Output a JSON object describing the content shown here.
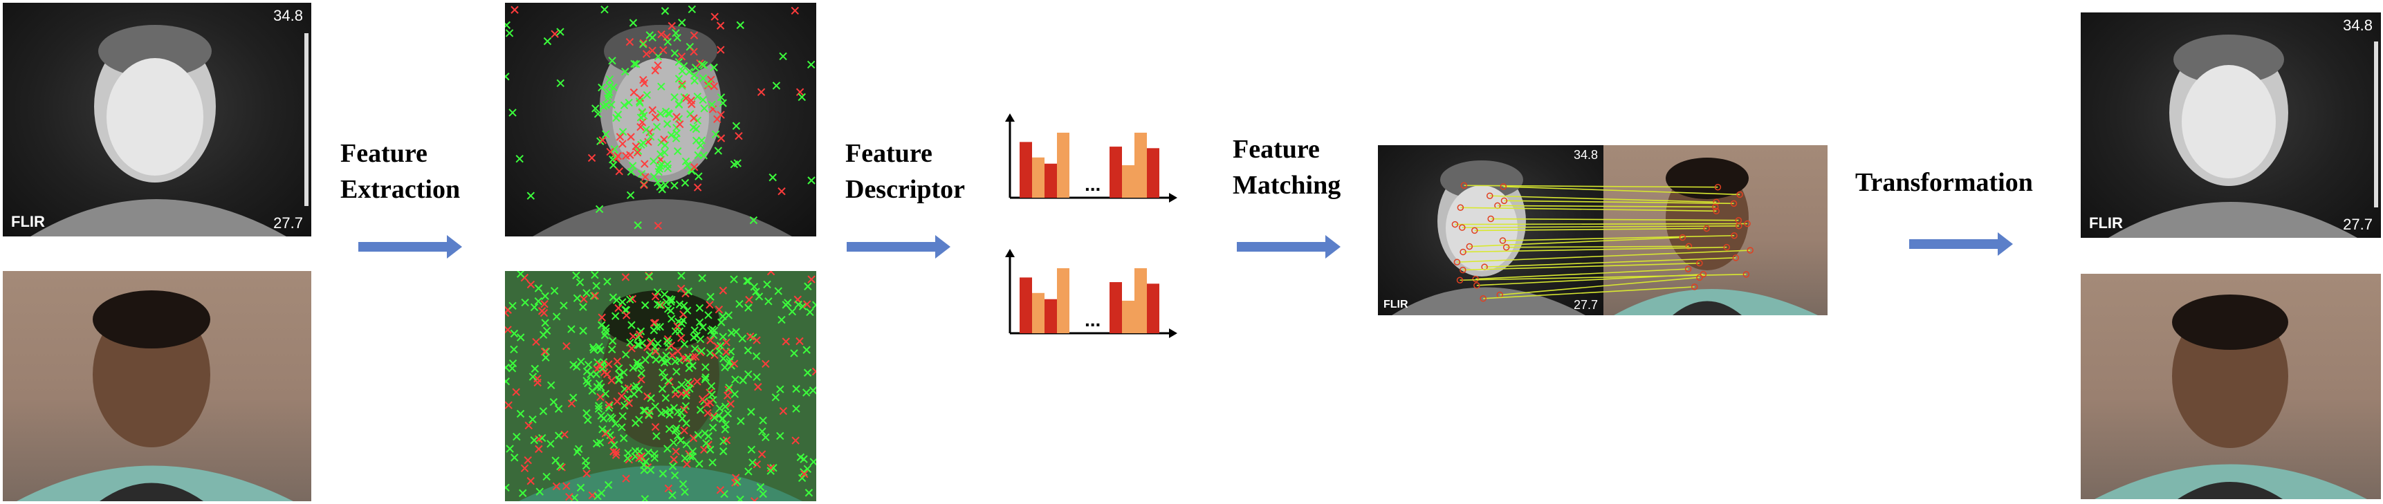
{
  "stages": {
    "extraction": [
      "Feature",
      "Extraction"
    ],
    "descriptor": [
      "Feature",
      "Descriptor"
    ],
    "matching": [
      "Feature",
      "Matching"
    ],
    "transformation": "Transformation"
  },
  "thermal_camera": {
    "brand": "FLIR",
    "temp_max": "34.8",
    "temp_min": "27.7"
  },
  "histogram": {
    "ellipsis": "...",
    "colors": {
      "dark": "#d02a1e",
      "light": "#f2a05a",
      "axis": "#000000"
    },
    "values": [
      0.72,
      0.52,
      0.44,
      0.84,
      0.66,
      0.42,
      0.84,
      0.64
    ]
  },
  "arrow_color": "#5b7fc9",
  "keypoint_colors": {
    "green": "#3cff3c",
    "red": "#ff3c3c"
  },
  "match_line_color": "#d8e830"
}
